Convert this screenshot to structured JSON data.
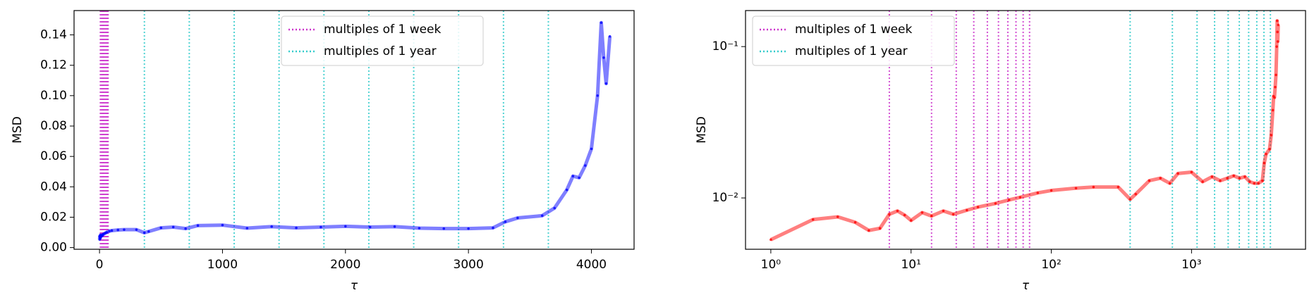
{
  "chart_data": [
    {
      "type": "line",
      "xlabel": "τ",
      "ylabel": "MSD",
      "color": "#0000ff",
      "log_x": false,
      "log_y": false,
      "x": [
        1,
        2,
        3,
        4,
        5,
        6,
        7,
        8,
        9,
        10,
        12,
        14,
        17,
        20,
        25,
        30,
        40,
        50,
        60,
        80,
        100,
        150,
        200,
        300,
        365,
        400,
        500,
        600,
        700,
        800,
        1000,
        1200,
        1400,
        1600,
        1800,
        2000,
        2200,
        2400,
        2600,
        2800,
        3000,
        3200,
        3300,
        3400,
        3600,
        3700,
        3800,
        3850,
        3900,
        3950,
        4000,
        4050,
        4080,
        4100,
        4120,
        4150
      ],
      "values": [
        0.0053,
        0.0072,
        0.0075,
        0.0069,
        0.0061,
        0.0063,
        0.0078,
        0.0082,
        0.0077,
        0.0071,
        0.008,
        0.0076,
        0.0082,
        0.0078,
        0.0083,
        0.0087,
        0.0092,
        0.0097,
        0.0101,
        0.0108,
        0.0112,
        0.0116,
        0.0118,
        0.0118,
        0.0098,
        0.0106,
        0.013,
        0.0135,
        0.0125,
        0.0145,
        0.0148,
        0.0128,
        0.0138,
        0.013,
        0.0135,
        0.014,
        0.0135,
        0.0138,
        0.0128,
        0.0125,
        0.0125,
        0.013,
        0.017,
        0.0195,
        0.021,
        0.026,
        0.038,
        0.047,
        0.046,
        0.054,
        0.065,
        0.1,
        0.148,
        0.125,
        0.108,
        0.139
      ],
      "xlim": [
        -207,
        4347
      ],
      "xticks": [
        0,
        1000,
        2000,
        3000,
        4000
      ],
      "ylim": [
        -0.0011,
        0.156
      ],
      "yticks": [
        {
          "value": 0,
          "label": "0.00"
        },
        0.02,
        0.04,
        0.06,
        0.08,
        {
          "value": 0.1,
          "label": "0.10"
        },
        0.12,
        0.14
      ],
      "legend": "upper center",
      "reference_lines": [
        {
          "name": "multiples of 1 week",
          "color": "#cc33cc",
          "values": [
            7,
            14,
            21,
            28,
            35,
            42,
            49,
            56,
            63,
            70
          ]
        },
        {
          "name": "multiples of 1 year",
          "color": "#33cccc",
          "values": [
            365,
            730,
            1095,
            1460,
            1825,
            2190,
            2555,
            2920,
            3285,
            3650
          ]
        }
      ]
    },
    {
      "type": "line",
      "xlabel": "τ",
      "ylabel": "MSD",
      "color": "#ff0000",
      "log_x": true,
      "log_y": true,
      "x": [
        1,
        2,
        3,
        4,
        5,
        6,
        7,
        8,
        9,
        10,
        12,
        14,
        17,
        20,
        25,
        30,
        40,
        50,
        60,
        80,
        100,
        150,
        200,
        300,
        365,
        400,
        500,
        600,
        700,
        800,
        1000,
        1200,
        1400,
        1600,
        1800,
        2000,
        2200,
        2400,
        2600,
        2800,
        3000,
        3200,
        3300,
        3400,
        3600,
        3700,
        3800,
        3850,
        3900,
        3950,
        4000,
        4050,
        4080,
        4100,
        4120,
        4150
      ],
      "values": [
        0.0053,
        0.0072,
        0.0075,
        0.0069,
        0.0061,
        0.0063,
        0.0078,
        0.0082,
        0.0077,
        0.0071,
        0.008,
        0.0076,
        0.0082,
        0.0078,
        0.0083,
        0.0087,
        0.0092,
        0.0097,
        0.0101,
        0.0108,
        0.0112,
        0.0116,
        0.0118,
        0.0118,
        0.0098,
        0.0106,
        0.013,
        0.0135,
        0.0125,
        0.0145,
        0.0148,
        0.0128,
        0.0138,
        0.013,
        0.0135,
        0.014,
        0.0135,
        0.0138,
        0.0128,
        0.0125,
        0.0125,
        0.013,
        0.017,
        0.0195,
        0.021,
        0.026,
        0.038,
        0.047,
        0.046,
        0.054,
        0.065,
        0.1,
        0.148,
        0.125,
        0.108,
        0.139
      ],
      "xlim": [
        0.66,
        6500
      ],
      "xticks": [
        {
          "value": 1,
          "label": "10⁰"
        },
        {
          "value": 10,
          "label": "10¹"
        },
        {
          "value": 100,
          "label": "10²"
        },
        {
          "value": 1000,
          "label": "10³"
        }
      ],
      "ylim": [
        0.00458,
        0.173
      ],
      "yticks": [
        {
          "value": 0.01,
          "label": "10⁻²"
        },
        {
          "value": 0.1,
          "label": "10⁻¹"
        }
      ],
      "legend": "upper left",
      "reference_lines": [
        {
          "name": "multiples of 1 week",
          "color": "#cc33cc",
          "values": [
            7,
            14,
            21,
            28,
            35,
            42,
            49,
            56,
            63,
            70
          ]
        },
        {
          "name": "multiples of 1 year",
          "color": "#33cccc",
          "values": [
            365,
            730,
            1095,
            1460,
            1825,
            2190,
            2555,
            2920,
            3285,
            3650
          ]
        }
      ]
    }
  ]
}
